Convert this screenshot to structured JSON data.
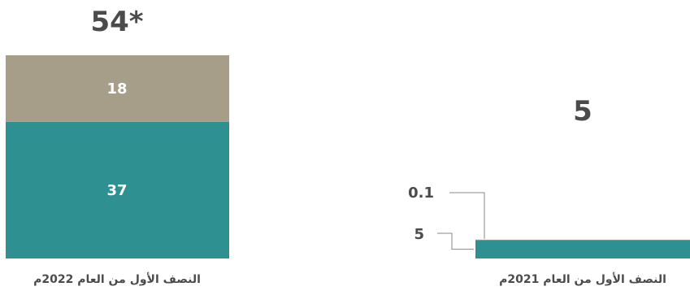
{
  "chart_data": {
    "type": "bar",
    "stacked": true,
    "categories": [
      "النصف الأول من العام 2022م",
      "النصف الأول من العام 2021م"
    ],
    "series": [
      {
        "values": [
          37,
          5
        ],
        "color": "#2e9090"
      },
      {
        "values": [
          18,
          0.1
        ],
        "color": "#a69e89"
      }
    ],
    "totals": [
      "54*",
      "5"
    ],
    "segment_labels": [
      [
        "37",
        "18"
      ],
      [
        "5",
        "0.1"
      ]
    ],
    "ylim": [
      0,
      55
    ],
    "grid": false,
    "legend": "none"
  }
}
